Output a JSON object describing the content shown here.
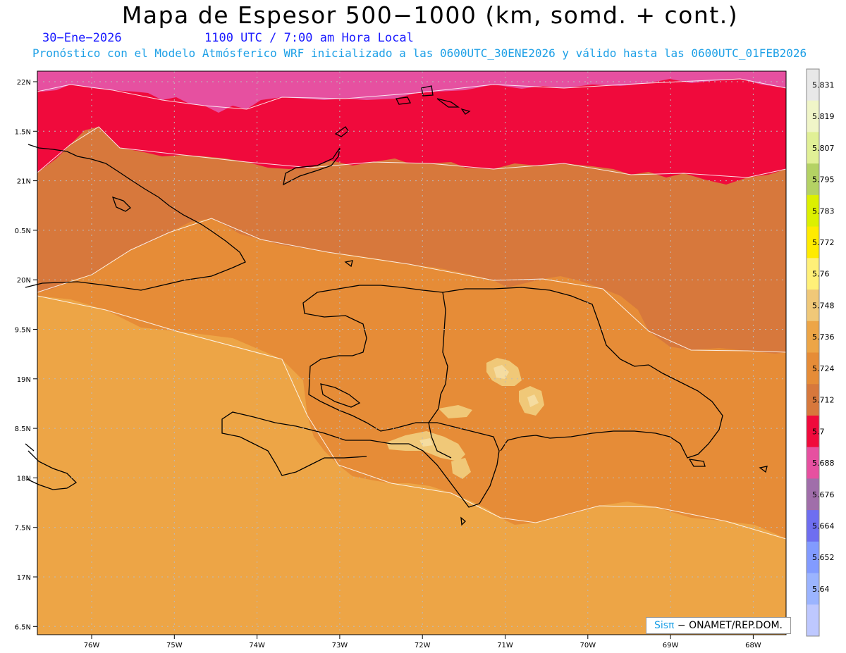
{
  "title": "Mapa de Espesor 500−1000 (km, somd. + cont.)",
  "date_label": "30−Ene−2026",
  "time_label": "1100 UTC / 7:00 am Hora Local",
  "subtitle": "Pronóstico con el Modelo Atmósferico WRF inicializado a las 0600UTC_30ENE2026 y válido hasta las  0600UTC_01FEB2026",
  "map_data": {
    "type": "filled-contour map",
    "lat_labels": [
      "22N",
      "1.5N",
      "21N",
      "0.5N",
      "20N",
      "9.5N",
      "19N",
      "8.5N",
      "18N",
      "7.5N",
      "17N",
      "6.5N"
    ],
    "lon_labels": [
      "76W",
      "75W",
      "74W",
      "73W",
      "72W",
      "71W",
      "70W",
      "69W",
      "68W"
    ],
    "colorbar": {
      "levels": [
        "5.831",
        "5.819",
        "5.807",
        "5.795",
        "5.783",
        "5.772",
        "5.76",
        "5.748",
        "5.736",
        "5.724",
        "5.712",
        "5.7",
        "5.688",
        "5.676",
        "5.664",
        "5.652",
        "5.64"
      ],
      "colors": [
        "#e8e8e8",
        "#f0f5c8",
        "#e1f096",
        "#b4d264",
        "#dcf000",
        "#ffeb00",
        "#fff078",
        "#f0c878",
        "#eda546",
        "#e68c37",
        "#d7783c",
        "#f00a3c",
        "#e650a0",
        "#a06eaa",
        "#6e6ef0",
        "#829bff",
        "#9bb4ff",
        "#bec8ff"
      ]
    },
    "regions": [
      {
        "name": "north-pink",
        "color": "#e650a0"
      },
      {
        "name": "red-band",
        "color": "#f00a3c"
      },
      {
        "name": "dark-orange",
        "color": "#d7783c"
      },
      {
        "name": "medium-orange",
        "color": "#e68c37"
      },
      {
        "name": "light-orange",
        "color": "#eda546"
      },
      {
        "name": "peach-spots",
        "color": "#f0c878"
      }
    ]
  },
  "badge": {
    "sis": "Sisπ",
    "rest": " − ONAMET/REP.DOM."
  }
}
